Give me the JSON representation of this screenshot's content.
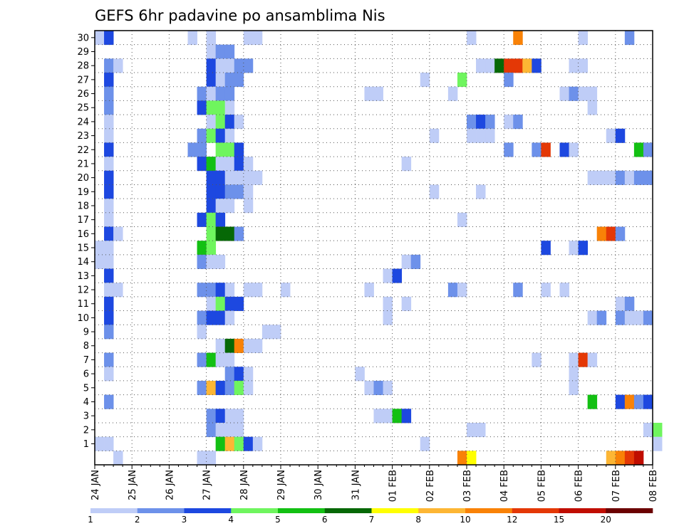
{
  "chart_data": {
    "type": "heatmap",
    "title": "GEFS 6hr padavine po ansamblima Nis",
    "xlabel": "",
    "ylabel": "",
    "x_tick_labels": [
      "24 JAN",
      "25 JAN",
      "26 JAN",
      "27 JAN",
      "28 JAN",
      "29 JAN",
      "30 JAN",
      "31 JAN",
      "01 FEB",
      "02 FEB",
      "03 FEB",
      "04 FEB",
      "05 FEB",
      "06 FEB",
      "07 FEB",
      "08 FEB"
    ],
    "y_tick_labels": [
      "1",
      "2",
      "3",
      "4",
      "5",
      "6",
      "7",
      "8",
      "9",
      "10",
      "11",
      "12",
      "13",
      "14",
      "15",
      "16",
      "17",
      "18",
      "19",
      "20",
      "21",
      "22",
      "23",
      "24",
      "25",
      "26",
      "27",
      "28",
      "29",
      "30"
    ],
    "x_range_days": [
      0,
      15
    ],
    "y_range": [
      0,
      30
    ],
    "time_step_hours": 6,
    "grid": "dotted",
    "colorbar": {
      "position": "bottom",
      "thresholds": [
        "1",
        "2",
        "3",
        "4",
        "5",
        "6",
        "7",
        "8",
        "10",
        "12",
        "15",
        "20"
      ],
      "colors": [
        "#bfcdf7",
        "#6d91ea",
        "#1d48e0",
        "#6ff55e",
        "#13c013",
        "#066806",
        "#ffff00",
        "#fdb634",
        "#f98207",
        "#e43806",
        "#c00d00",
        "#6b0000"
      ]
    },
    "cells_format": "[time step (6h) index from 24 JAN 00Z, member/row index, color class]",
    "cells": [
      [
        0,
        30,
        0
      ],
      [
        1,
        30,
        2
      ],
      [
        10,
        30,
        0
      ],
      [
        12,
        30,
        0
      ],
      [
        16,
        30,
        0
      ],
      [
        17,
        30,
        0
      ],
      [
        40,
        30,
        0
      ],
      [
        45,
        30,
        8
      ],
      [
        52,
        30,
        0
      ],
      [
        57,
        30,
        1
      ],
      [
        12,
        29,
        0
      ],
      [
        13,
        29,
        1
      ],
      [
        14,
        29,
        1
      ],
      [
        1,
        28,
        1
      ],
      [
        2,
        28,
        0
      ],
      [
        12,
        28,
        2
      ],
      [
        13,
        28,
        0
      ],
      [
        14,
        28,
        0
      ],
      [
        15,
        28,
        1
      ],
      [
        16,
        28,
        1
      ],
      [
        41,
        28,
        0
      ],
      [
        42,
        28,
        0
      ],
      [
        43,
        28,
        5
      ],
      [
        44,
        28,
        9
      ],
      [
        45,
        28,
        9
      ],
      [
        46,
        28,
        7
      ],
      [
        47,
        28,
        2
      ],
      [
        51,
        28,
        0
      ],
      [
        52,
        28,
        0
      ],
      [
        1,
        27,
        2
      ],
      [
        12,
        27,
        2
      ],
      [
        13,
        27,
        0
      ],
      [
        14,
        27,
        1
      ],
      [
        15,
        27,
        1
      ],
      [
        35,
        27,
        0
      ],
      [
        39,
        27,
        3
      ],
      [
        44,
        27,
        1
      ],
      [
        1,
        26,
        1
      ],
      [
        11,
        26,
        1
      ],
      [
        12,
        26,
        0
      ],
      [
        13,
        26,
        1
      ],
      [
        14,
        26,
        1
      ],
      [
        29,
        26,
        0
      ],
      [
        30,
        26,
        0
      ],
      [
        38,
        26,
        0
      ],
      [
        50,
        26,
        0
      ],
      [
        51,
        26,
        1
      ],
      [
        52,
        26,
        0
      ],
      [
        53,
        26,
        0
      ],
      [
        1,
        25,
        1
      ],
      [
        11,
        25,
        2
      ],
      [
        12,
        25,
        3
      ],
      [
        13,
        25,
        3
      ],
      [
        14,
        25,
        0
      ],
      [
        53,
        25,
        0
      ],
      [
        1,
        24,
        0
      ],
      [
        12,
        24,
        0
      ],
      [
        13,
        24,
        3
      ],
      [
        14,
        24,
        2
      ],
      [
        15,
        24,
        0
      ],
      [
        40,
        24,
        1
      ],
      [
        41,
        24,
        2
      ],
      [
        42,
        24,
        1
      ],
      [
        44,
        24,
        0
      ],
      [
        45,
        24,
        1
      ],
      [
        1,
        23,
        0
      ],
      [
        11,
        23,
        1
      ],
      [
        12,
        23,
        3
      ],
      [
        13,
        23,
        2
      ],
      [
        14,
        23,
        0
      ],
      [
        36,
        23,
        0
      ],
      [
        40,
        23,
        0
      ],
      [
        41,
        23,
        0
      ],
      [
        42,
        23,
        0
      ],
      [
        55,
        23,
        0
      ],
      [
        56,
        23,
        2
      ],
      [
        1,
        22,
        2
      ],
      [
        10,
        22,
        1
      ],
      [
        11,
        22,
        1
      ],
      [
        13,
        22,
        3
      ],
      [
        14,
        22,
        3
      ],
      [
        15,
        22,
        2
      ],
      [
        44,
        22,
        1
      ],
      [
        47,
        22,
        1
      ],
      [
        48,
        22,
        9
      ],
      [
        50,
        22,
        2
      ],
      [
        51,
        22,
        0
      ],
      [
        58,
        22,
        4
      ],
      [
        59,
        22,
        1
      ],
      [
        1,
        21,
        0
      ],
      [
        11,
        21,
        2
      ],
      [
        12,
        21,
        4
      ],
      [
        13,
        21,
        0
      ],
      [
        14,
        21,
        0
      ],
      [
        15,
        21,
        2
      ],
      [
        16,
        21,
        0
      ],
      [
        33,
        21,
        0
      ],
      [
        1,
        20,
        2
      ],
      [
        12,
        20,
        2
      ],
      [
        13,
        20,
        2
      ],
      [
        14,
        20,
        0
      ],
      [
        15,
        20,
        0
      ],
      [
        16,
        20,
        0
      ],
      [
        17,
        20,
        0
      ],
      [
        53,
        20,
        0
      ],
      [
        54,
        20,
        0
      ],
      [
        55,
        20,
        0
      ],
      [
        56,
        20,
        1
      ],
      [
        57,
        20,
        0
      ],
      [
        58,
        20,
        1
      ],
      [
        59,
        20,
        1
      ],
      [
        1,
        19,
        2
      ],
      [
        12,
        19,
        2
      ],
      [
        13,
        19,
        2
      ],
      [
        14,
        19,
        1
      ],
      [
        15,
        19,
        1
      ],
      [
        16,
        19,
        0
      ],
      [
        36,
        19,
        0
      ],
      [
        41,
        19,
        0
      ],
      [
        1,
        18,
        0
      ],
      [
        12,
        18,
        2
      ],
      [
        13,
        18,
        0
      ],
      [
        14,
        18,
        0
      ],
      [
        16,
        18,
        0
      ],
      [
        1,
        17,
        0
      ],
      [
        11,
        17,
        2
      ],
      [
        12,
        17,
        3
      ],
      [
        13,
        17,
        2
      ],
      [
        39,
        17,
        0
      ],
      [
        1,
        16,
        2
      ],
      [
        2,
        16,
        0
      ],
      [
        12,
        16,
        3
      ],
      [
        13,
        16,
        5
      ],
      [
        14,
        16,
        5
      ],
      [
        15,
        16,
        1
      ],
      [
        54,
        16,
        8
      ],
      [
        55,
        16,
        9
      ],
      [
        56,
        16,
        1
      ],
      [
        0,
        15,
        0
      ],
      [
        1,
        15,
        0
      ],
      [
        11,
        15,
        4
      ],
      [
        12,
        15,
        3
      ],
      [
        48,
        15,
        2
      ],
      [
        51,
        15,
        0
      ],
      [
        52,
        15,
        2
      ],
      [
        0,
        14,
        0
      ],
      [
        1,
        14,
        0
      ],
      [
        11,
        14,
        1
      ],
      [
        12,
        14,
        0
      ],
      [
        13,
        14,
        0
      ],
      [
        33,
        14,
        0
      ],
      [
        34,
        14,
        1
      ],
      [
        1,
        13,
        2
      ],
      [
        31,
        13,
        0
      ],
      [
        32,
        13,
        2
      ],
      [
        1,
        12,
        0
      ],
      [
        2,
        12,
        0
      ],
      [
        11,
        12,
        1
      ],
      [
        12,
        12,
        1
      ],
      [
        13,
        12,
        2
      ],
      [
        14,
        12,
        0
      ],
      [
        16,
        12,
        0
      ],
      [
        17,
        12,
        0
      ],
      [
        20,
        12,
        0
      ],
      [
        29,
        12,
        0
      ],
      [
        38,
        12,
        1
      ],
      [
        39,
        12,
        0
      ],
      [
        45,
        12,
        1
      ],
      [
        48,
        12,
        0
      ],
      [
        50,
        12,
        0
      ],
      [
        1,
        11,
        2
      ],
      [
        12,
        11,
        0
      ],
      [
        13,
        11,
        3
      ],
      [
        14,
        11,
        2
      ],
      [
        15,
        11,
        2
      ],
      [
        31,
        11,
        0
      ],
      [
        33,
        11,
        0
      ],
      [
        56,
        11,
        0
      ],
      [
        57,
        11,
        1
      ],
      [
        1,
        10,
        2
      ],
      [
        11,
        10,
        1
      ],
      [
        12,
        10,
        2
      ],
      [
        13,
        10,
        2
      ],
      [
        14,
        10,
        0
      ],
      [
        31,
        10,
        0
      ],
      [
        53,
        10,
        0
      ],
      [
        54,
        10,
        1
      ],
      [
        56,
        10,
        1
      ],
      [
        57,
        10,
        0
      ],
      [
        58,
        10,
        0
      ],
      [
        59,
        10,
        1
      ],
      [
        1,
        9,
        1
      ],
      [
        11,
        9,
        0
      ],
      [
        18,
        9,
        0
      ],
      [
        19,
        9,
        0
      ],
      [
        13,
        8,
        0
      ],
      [
        14,
        8,
        5
      ],
      [
        15,
        8,
        8
      ],
      [
        16,
        8,
        0
      ],
      [
        17,
        8,
        0
      ],
      [
        1,
        7,
        1
      ],
      [
        11,
        7,
        1
      ],
      [
        12,
        7,
        4
      ],
      [
        13,
        7,
        0
      ],
      [
        14,
        7,
        0
      ],
      [
        47,
        7,
        0
      ],
      [
        51,
        7,
        0
      ],
      [
        52,
        7,
        9
      ],
      [
        53,
        7,
        0
      ],
      [
        1,
        6,
        0
      ],
      [
        14,
        6,
        1
      ],
      [
        15,
        6,
        2
      ],
      [
        16,
        6,
        0
      ],
      [
        28,
        6,
        0
      ],
      [
        51,
        6,
        0
      ],
      [
        11,
        5,
        1
      ],
      [
        12,
        5,
        7
      ],
      [
        13,
        5,
        2
      ],
      [
        14,
        5,
        1
      ],
      [
        15,
        5,
        3
      ],
      [
        16,
        5,
        0
      ],
      [
        29,
        5,
        0
      ],
      [
        30,
        5,
        1
      ],
      [
        31,
        5,
        0
      ],
      [
        51,
        5,
        0
      ],
      [
        1,
        4,
        1
      ],
      [
        53,
        4,
        4
      ],
      [
        56,
        4,
        2
      ],
      [
        57,
        4,
        8
      ],
      [
        58,
        4,
        1
      ],
      [
        59,
        4,
        2
      ],
      [
        12,
        3,
        1
      ],
      [
        13,
        3,
        2
      ],
      [
        14,
        3,
        0
      ],
      [
        15,
        3,
        0
      ],
      [
        30,
        3,
        0
      ],
      [
        31,
        3,
        0
      ],
      [
        32,
        3,
        4
      ],
      [
        33,
        3,
        2
      ],
      [
        12,
        2,
        1
      ],
      [
        13,
        2,
        0
      ],
      [
        14,
        2,
        0
      ],
      [
        15,
        2,
        0
      ],
      [
        40,
        2,
        0
      ],
      [
        41,
        2,
        0
      ],
      [
        59,
        2,
        0
      ],
      [
        60,
        2,
        3
      ],
      [
        0,
        1,
        0
      ],
      [
        1,
        1,
        0
      ],
      [
        13,
        1,
        4
      ],
      [
        14,
        1,
        7
      ],
      [
        15,
        1,
        3
      ],
      [
        16,
        1,
        2
      ],
      [
        17,
        1,
        0
      ],
      [
        35,
        1,
        0
      ],
      [
        60,
        1,
        0
      ],
      [
        2,
        0,
        0
      ],
      [
        11,
        0,
        0
      ],
      [
        12,
        0,
        0
      ],
      [
        39,
        0,
        8
      ],
      [
        40,
        0,
        6
      ],
      [
        55,
        0,
        7
      ],
      [
        56,
        0,
        8
      ],
      [
        57,
        0,
        9
      ],
      [
        58,
        0,
        10
      ]
    ]
  }
}
